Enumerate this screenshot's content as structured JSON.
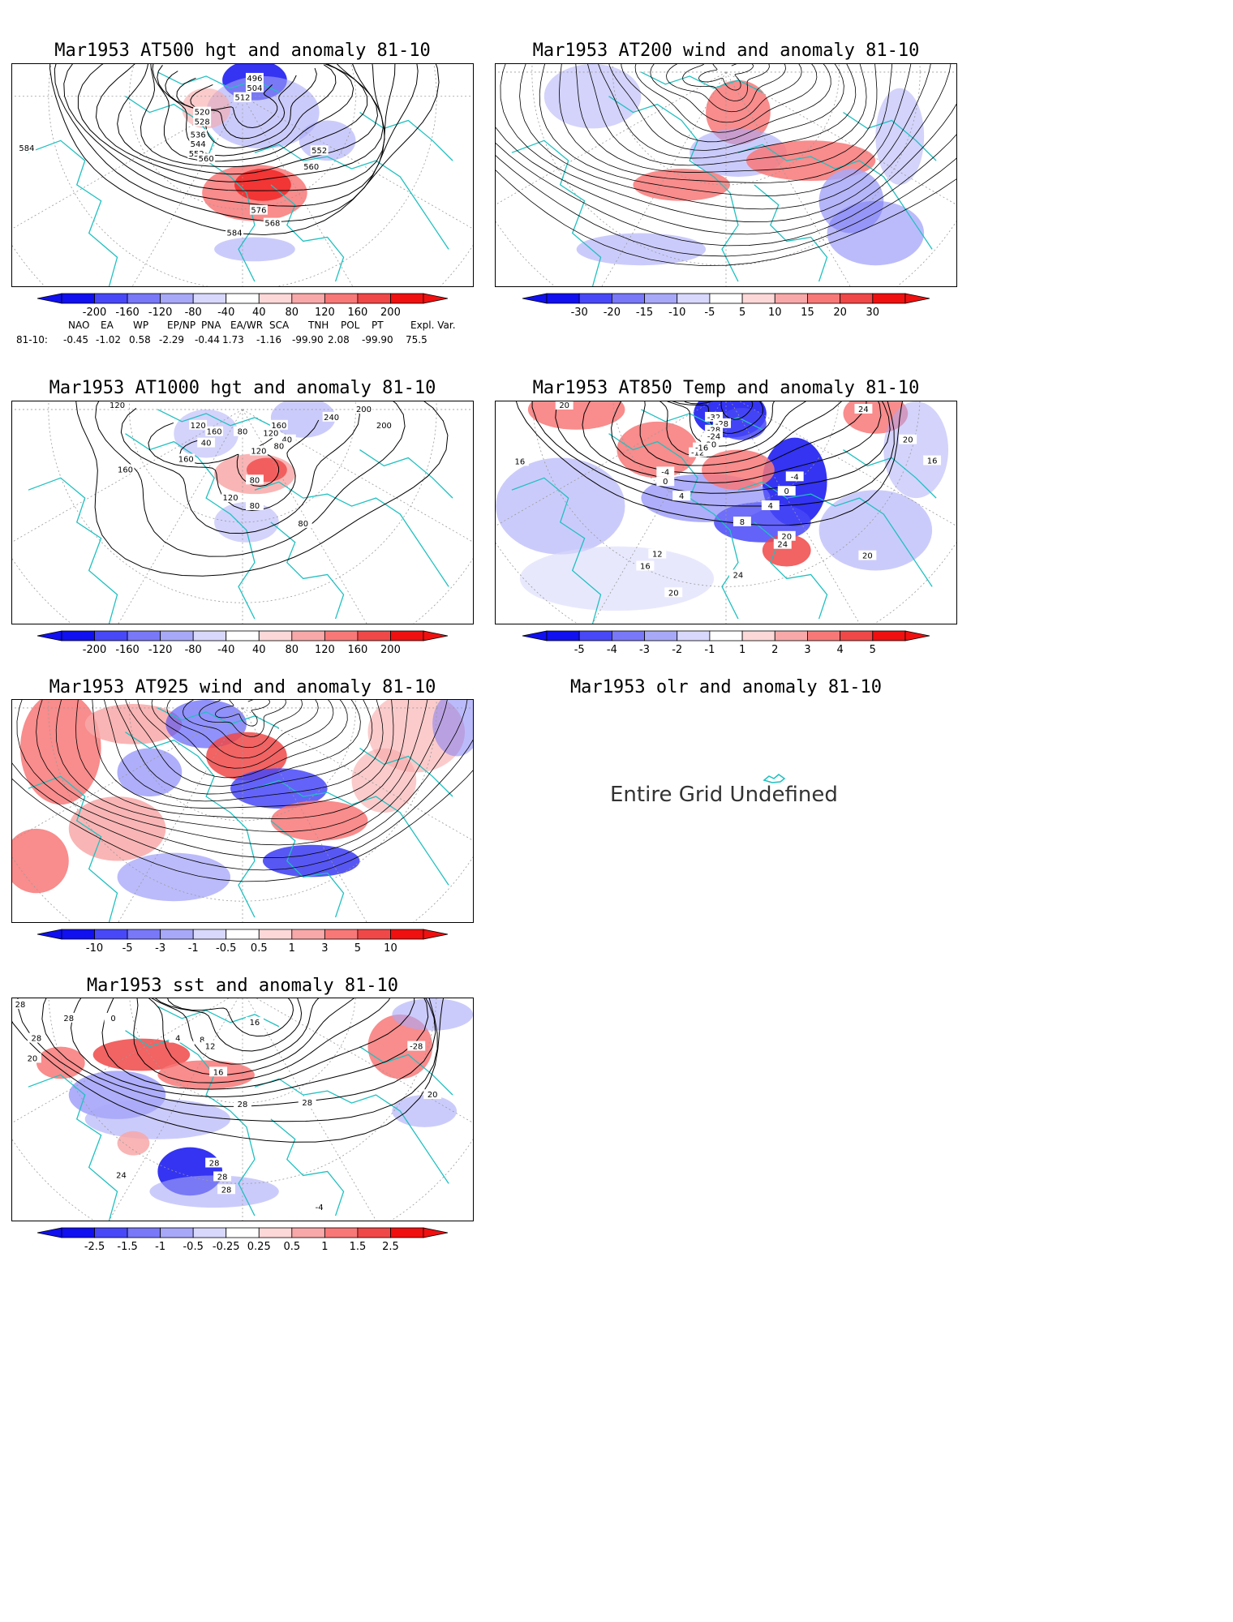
{
  "panels": [
    {
      "id": "p1",
      "title": "Mar1953 AT500 hgt and anomaly 81-10",
      "contour_labels": [
        "584",
        "496",
        "504",
        "512",
        "520",
        "528",
        "536",
        "544",
        "552",
        "552",
        "560",
        "560",
        "568",
        "576",
        "584"
      ],
      "colorbar": {
        "ticks": [
          "-200",
          "-160",
          "-120",
          "-80",
          "-40",
          "40",
          "80",
          "120",
          "160",
          "200"
        ]
      }
    },
    {
      "id": "p2",
      "title": "Mar1953 AT200 wind and anomaly 81-10",
      "contour_labels": [],
      "colorbar": {
        "ticks": [
          "-30",
          "-20",
          "-15",
          "-10",
          "-5",
          "5",
          "10",
          "15",
          "20",
          "30"
        ]
      }
    },
    {
      "id": "p3",
      "title": "Mar1953 AT1000 hgt and anomaly 81-10",
      "contour_labels": [
        "120",
        "120",
        "160",
        "80",
        "40",
        "160",
        "120",
        "40",
        "80",
        "120",
        "160",
        "240",
        "200",
        "200",
        "160",
        "80",
        "120",
        "80",
        "80"
      ],
      "colorbar": {
        "ticks": [
          "-200",
          "-160",
          "-120",
          "-80",
          "-40",
          "40",
          "80",
          "120",
          "160",
          "200"
        ]
      }
    },
    {
      "id": "p4",
      "title": "Mar1953 AT850 Temp and anomaly 81-10",
      "contour_labels": [
        "20",
        "24",
        "20",
        "16",
        "-32",
        "-28",
        "-28",
        "-24",
        "-20",
        "-12",
        "-16",
        "-4",
        "0",
        "4",
        "-4",
        "0",
        "4",
        "8",
        "12",
        "16",
        "20",
        "24",
        "20",
        "24",
        "20",
        "16"
      ],
      "colorbar": {
        "ticks": [
          "-5",
          "-4",
          "-3",
          "-2",
          "-1",
          "1",
          "2",
          "3",
          "4",
          "5"
        ]
      }
    },
    {
      "id": "p5",
      "title": "Mar1953 AT925 wind and anomaly 81-10",
      "contour_labels": [],
      "colorbar": {
        "ticks": [
          "-10",
          "-5",
          "-3",
          "-1",
          "-0.5",
          "0.5",
          "1",
          "3",
          "5",
          "10"
        ]
      }
    },
    {
      "id": "p6",
      "title": "Mar1953 olr and anomaly 81-10",
      "message": "Entire Grid Undefined"
    },
    {
      "id": "p7",
      "title": "Mar1953 sst and anomaly 81-10",
      "contour_labels": [
        "28",
        "28",
        "28",
        "20",
        "0",
        "4",
        "8",
        "12",
        "16",
        "16",
        "28",
        "28",
        "-28",
        "20",
        "24",
        "28",
        "28",
        "28",
        "-4"
      ],
      "colorbar": {
        "ticks": [
          "-2.5",
          "-1.5",
          "-1",
          "-0.5",
          "-0.25",
          "0.25",
          "0.5",
          "1",
          "1.5",
          "2.5"
        ]
      }
    }
  ],
  "teleconnection": {
    "headers": [
      "NAO",
      "EA",
      "WP",
      "EP/NP",
      "PNA",
      "EA/WR",
      "SCA",
      "TNH",
      "POL",
      "PT",
      "Expl. Var."
    ],
    "row_label": "81-10:",
    "values": [
      "-0.45",
      "-1.02",
      "0.58",
      "-2.29",
      "-0.44",
      "1.73",
      "-1.16",
      "-99.90",
      "2.08",
      "-99.90",
      "75.5"
    ]
  },
  "colors": {
    "coast": "#20c0c0",
    "grid": "#9a9a9a",
    "scale": [
      "#1010f0",
      "#4848f8",
      "#7878f8",
      "#a8a8f8",
      "#d8d8fc",
      "#ffffff",
      "#fcd8d8",
      "#f8a8a8",
      "#f87878",
      "#f04848",
      "#f01010"
    ]
  }
}
